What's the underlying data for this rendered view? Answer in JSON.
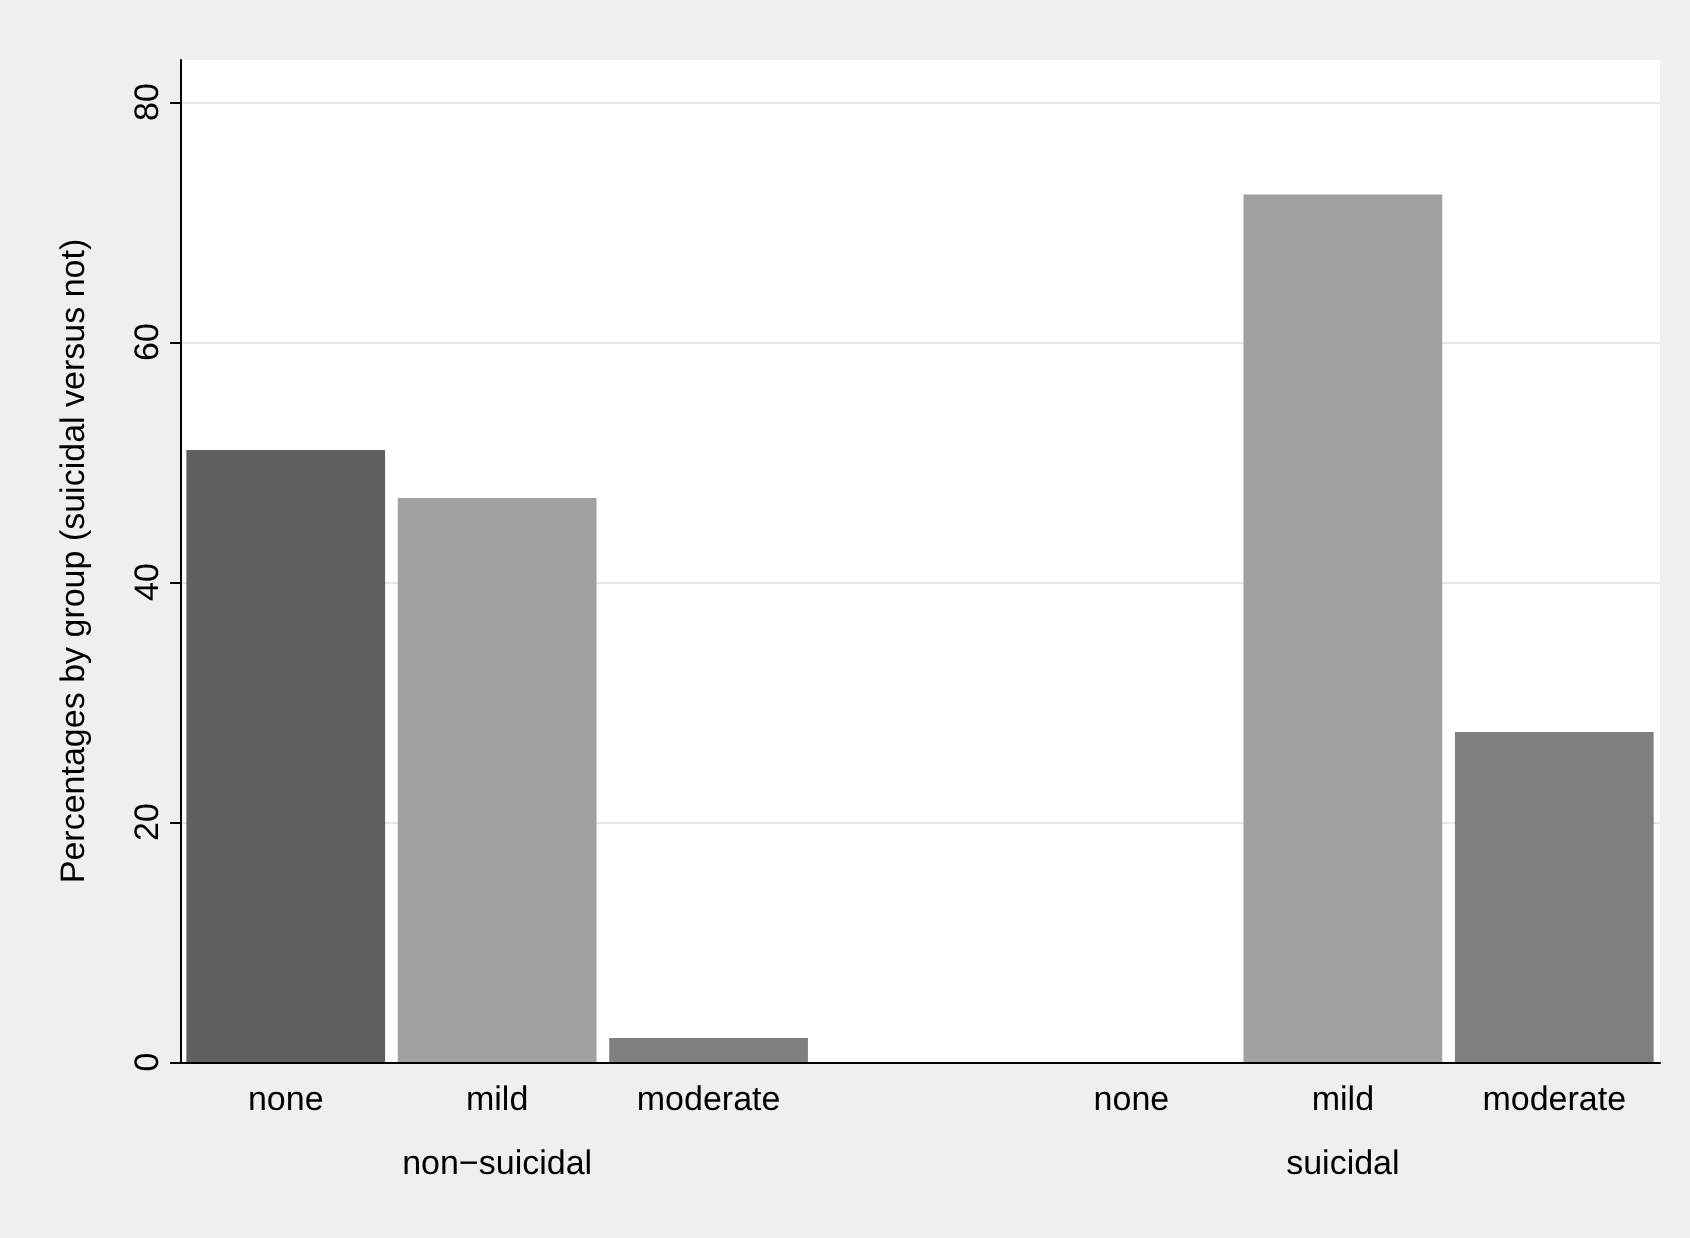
{
  "chart_data": {
    "type": "bar",
    "ylabel": "Percentages by group (suicidal versus not)",
    "categories": [
      "none",
      "mild",
      "moderate",
      null,
      "none",
      "mild",
      "moderate"
    ],
    "values": [
      51,
      47,
      2,
      null,
      0,
      72.3,
      27.5
    ],
    "colors": [
      "#5f5f5f",
      "#a0a0a0",
      "#7f7f7f",
      null,
      "#5f5f5f",
      "#a0a0a0",
      "#7f7f7f"
    ],
    "annotations": [
      "non−suicidal",
      "suicidal"
    ],
    "ylim": [
      0,
      83.5
    ],
    "yticks": [
      0,
      20,
      40,
      60,
      80
    ],
    "grid": "y"
  }
}
